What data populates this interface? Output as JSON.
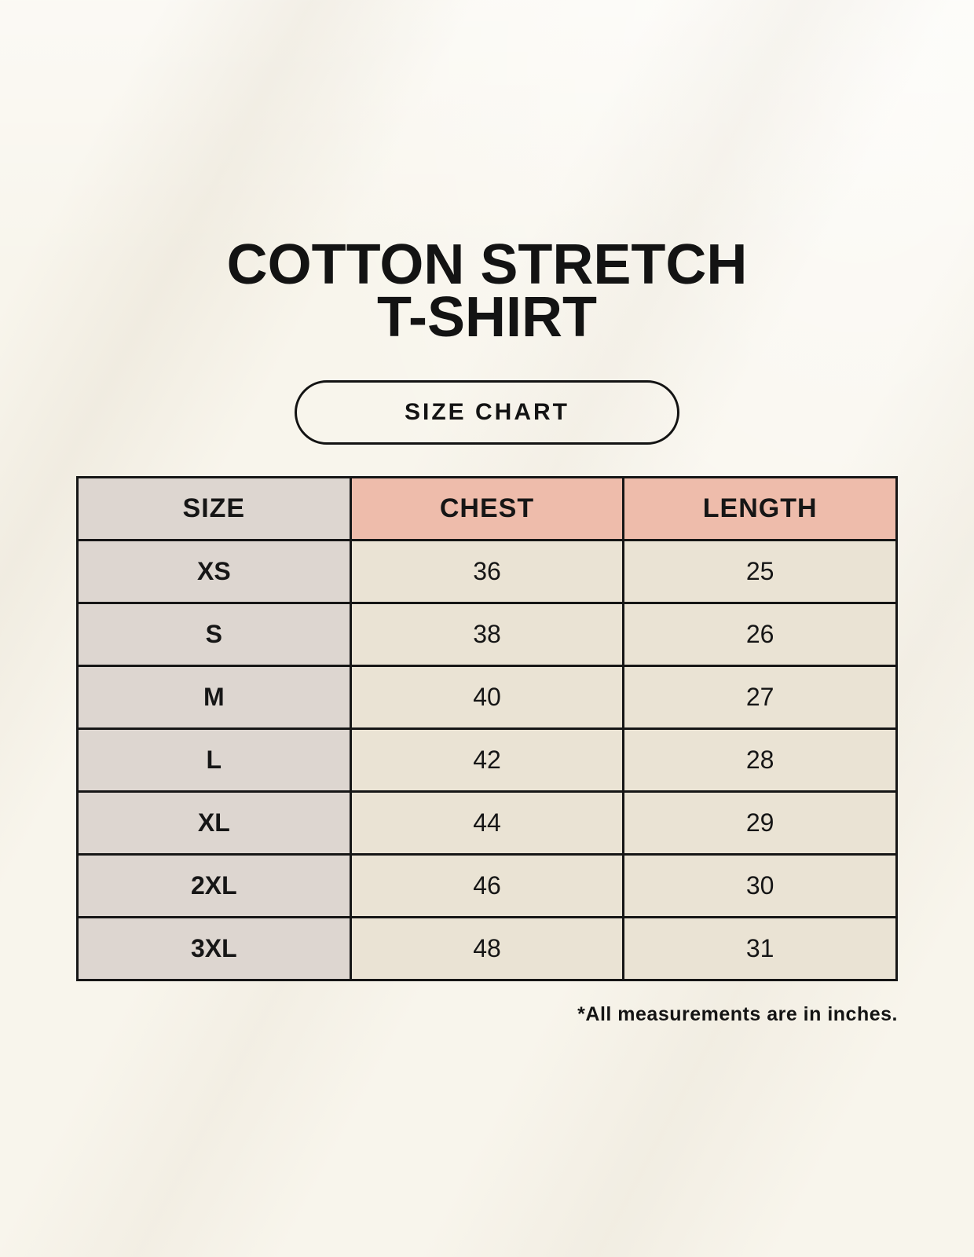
{
  "page": {
    "title_line1": "COTTON STRETCH",
    "title_line2": "T-SHIRT",
    "badge_label": "SIZE CHART",
    "footnote": "*All measurements are in inches."
  },
  "colors": {
    "background": "#f8f5ec",
    "table_border": "#161616",
    "size_column_bg": "#ddd6d0",
    "header_accent_bg": "#eebcab",
    "data_cell_bg": "#eae3d4",
    "text": "#161616"
  },
  "chart_data": {
    "type": "table",
    "title": "COTTON STRETCH T-SHIRT",
    "columns": [
      "SIZE",
      "CHEST",
      "LENGTH"
    ],
    "rows": [
      [
        "XS",
        "36",
        "25"
      ],
      [
        "S",
        "38",
        "26"
      ],
      [
        "M",
        "40",
        "27"
      ],
      [
        "L",
        "42",
        "28"
      ],
      [
        "XL",
        "44",
        "29"
      ],
      [
        "2XL",
        "46",
        "30"
      ],
      [
        "3XL",
        "48",
        "31"
      ]
    ],
    "units": "inches"
  }
}
